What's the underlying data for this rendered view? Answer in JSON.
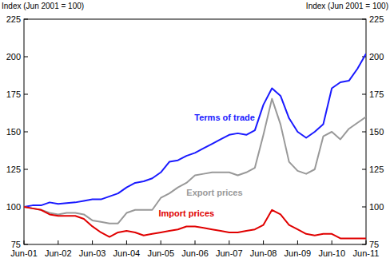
{
  "chart_data": {
    "type": "line",
    "y_label": "Index (Jun 2001 = 100)",
    "categories": [
      "Jun-01",
      null,
      null,
      null,
      "Jun-02",
      null,
      null,
      null,
      "Jun-03",
      null,
      null,
      null,
      "Jun-04",
      null,
      null,
      null,
      "Jun-05",
      null,
      null,
      null,
      "Jun-06",
      null,
      null,
      null,
      "Jun-07",
      null,
      null,
      null,
      "Jun-08",
      null,
      null,
      null,
      "Jun-09",
      null,
      null,
      null,
      "Jun-10",
      null,
      null,
      null,
      "Jun-11"
    ],
    "series": [
      {
        "name": "Terms of trade",
        "color": "#1a1aff",
        "values": [
          100,
          101,
          101,
          103,
          102,
          102.5,
          103,
          104,
          105,
          105,
          107,
          109,
          113,
          116,
          117,
          119,
          123,
          130,
          131,
          134,
          136,
          139,
          142,
          145,
          148,
          149,
          148,
          151,
          168,
          179,
          174,
          159,
          150,
          146,
          150,
          155,
          179,
          183,
          184,
          192,
          202
        ]
      },
      {
        "name": "Export prices",
        "color": "#999999",
        "values": [
          100,
          99,
          98,
          96,
          95,
          96,
          96,
          95,
          91,
          90,
          89,
          89,
          96,
          98,
          98,
          98,
          106,
          109,
          113,
          116,
          121,
          122,
          123,
          123,
          123,
          121,
          123,
          126,
          148,
          172,
          155,
          130,
          124,
          122,
          125,
          147,
          150,
          145,
          152,
          156,
          160
        ]
      },
      {
        "name": "Import prices",
        "color": "#e00000",
        "values": [
          100,
          99,
          98,
          95,
          94,
          94,
          94,
          92,
          87,
          83,
          80,
          83,
          84,
          83,
          81,
          82,
          83,
          84,
          85,
          87,
          87,
          86,
          85,
          84,
          83,
          83,
          84,
          85,
          88,
          98,
          95,
          88,
          85,
          82,
          81,
          82,
          82,
          79,
          79,
          79,
          79
        ]
      }
    ],
    "ylim": [
      75,
      225
    ],
    "yticks": [
      75,
      100,
      125,
      150,
      175,
      200,
      225
    ],
    "grid": false
  }
}
